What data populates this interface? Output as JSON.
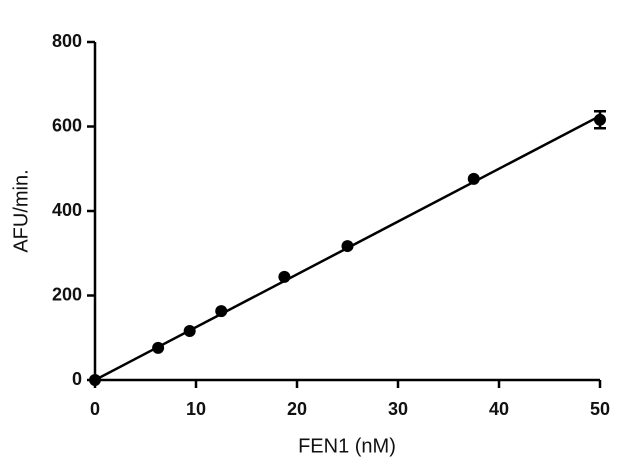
{
  "chart_data": {
    "type": "scatter",
    "x_label": "FEN1 (nM)",
    "y_label": "AFU/min.",
    "x": [
      0,
      6.25,
      9.375,
      12.5,
      18.75,
      25,
      37.5,
      50
    ],
    "values": [
      0,
      76,
      116,
      163,
      244,
      317,
      476,
      616
    ],
    "errors": [
      null,
      null,
      null,
      null,
      null,
      null,
      null,
      20
    ],
    "fit": {
      "x": [
        0,
        50
      ],
      "values": [
        0,
        625
      ]
    },
    "color": "#000000",
    "xlim": [
      0,
      50
    ],
    "xticks": [
      0,
      10,
      20,
      30,
      40,
      50
    ],
    "ylim": [
      0,
      800
    ],
    "yticks": [
      0,
      200,
      400,
      600,
      800
    ],
    "grid": false
  }
}
